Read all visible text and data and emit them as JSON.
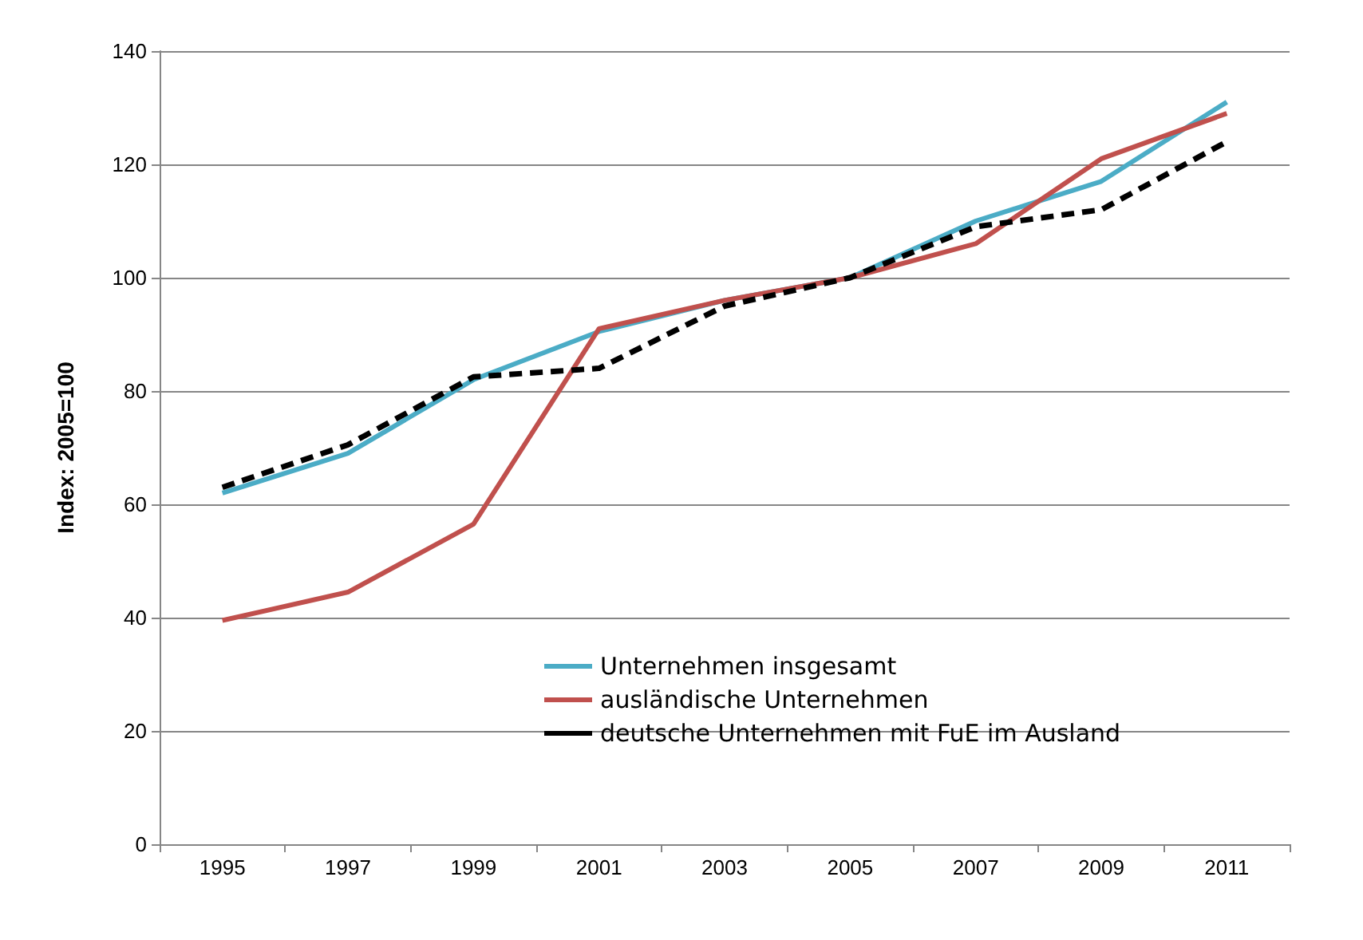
{
  "chart_data": {
    "type": "line",
    "ylabel": "Index: 2005=100",
    "categories": [
      "1995",
      "1997",
      "1999",
      "2001",
      "2003",
      "2005",
      "2007",
      "2009",
      "2011"
    ],
    "series": [
      {
        "name": "Unternehmen insgesamt",
        "color": "#4bacc6",
        "line_style": "solid",
        "values": [
          62,
          69,
          82,
          90.5,
          96,
          100,
          110,
          117,
          131
        ]
      },
      {
        "name": "ausländische Unternehmen",
        "color": "#c0504d",
        "line_style": "solid",
        "values": [
          39.5,
          44.5,
          56.5,
          91,
          96,
          100,
          106,
          121,
          129
        ]
      },
      {
        "name": "deutsche Unternehmen mit FuE im Ausland",
        "color": "#000000",
        "line_style": "dashed",
        "values": [
          63,
          70.5,
          82.5,
          84,
          95,
          100,
          109,
          112,
          124
        ]
      }
    ],
    "ylim": [
      0,
      140
    ],
    "yticks": [
      0,
      20,
      40,
      60,
      80,
      100,
      120,
      140
    ],
    "grid": "y",
    "legend": "bottom right",
    "marker": "none"
  }
}
